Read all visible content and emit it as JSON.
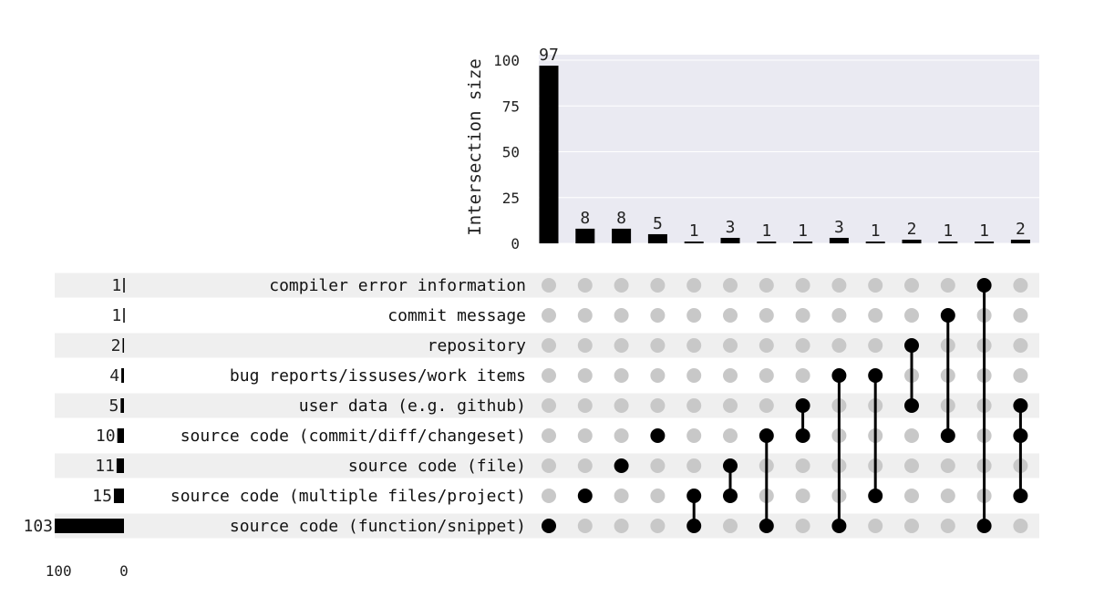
{
  "chart_data": {
    "type": "upset",
    "ylabel": "Intersection size",
    "yticks": [
      0,
      25,
      50,
      75,
      100
    ],
    "ylim": [
      0,
      103
    ],
    "grid": true,
    "sets": [
      {
        "name": "compiler error information",
        "size": 1
      },
      {
        "name": "commit message",
        "size": 1
      },
      {
        "name": "repository",
        "size": 2
      },
      {
        "name": "bug reports/issuses/work items",
        "size": 4
      },
      {
        "name": "user data (e.g. github)",
        "size": 5
      },
      {
        "name": "source code (commit/diff/changeset)",
        "size": 10
      },
      {
        "name": "source code (file)",
        "size": 11
      },
      {
        "name": "source code (multiple files/project)",
        "size": 15
      },
      {
        "name": "source code (function/snippet)",
        "size": 103
      }
    ],
    "set_size_ticks": [
      100,
      0
    ],
    "set_size_xlim": [
      0,
      103
    ],
    "intersections": [
      {
        "sets": [
          "source code (function/snippet)"
        ],
        "size": 97
      },
      {
        "sets": [
          "source code (multiple files/project)"
        ],
        "size": 8
      },
      {
        "sets": [
          "source code (file)"
        ],
        "size": 8
      },
      {
        "sets": [
          "source code (commit/diff/changeset)"
        ],
        "size": 5
      },
      {
        "sets": [
          "source code (multiple files/project)",
          "source code (function/snippet)"
        ],
        "size": 1
      },
      {
        "sets": [
          "source code (file)",
          "source code (multiple files/project)"
        ],
        "size": 3
      },
      {
        "sets": [
          "source code (commit/diff/changeset)",
          "source code (function/snippet)"
        ],
        "size": 1
      },
      {
        "sets": [
          "user data (e.g. github)",
          "source code (commit/diff/changeset)"
        ],
        "size": 1
      },
      {
        "sets": [
          "bug reports/issuses/work items",
          "source code (function/snippet)"
        ],
        "size": 3
      },
      {
        "sets": [
          "bug reports/issuses/work items",
          "source code (multiple files/project)"
        ],
        "size": 1
      },
      {
        "sets": [
          "repository",
          "user data (e.g. github)"
        ],
        "size": 2
      },
      {
        "sets": [
          "commit message",
          "source code (commit/diff/changeset)"
        ],
        "size": 1
      },
      {
        "sets": [
          "compiler error information",
          "source code (function/snippet)"
        ],
        "size": 1
      },
      {
        "sets": [
          "user data (e.g. github)",
          "source code (commit/diff/changeset)",
          "source code (multiple files/project)"
        ],
        "size": 2
      }
    ],
    "colors": {
      "bar": "#000000",
      "dot_active": "#000000",
      "dot_inactive": "#c8c8c8",
      "plot_bg": "#eaeaf2",
      "grid": "#ffffff",
      "stripe": "#efefef"
    }
  }
}
